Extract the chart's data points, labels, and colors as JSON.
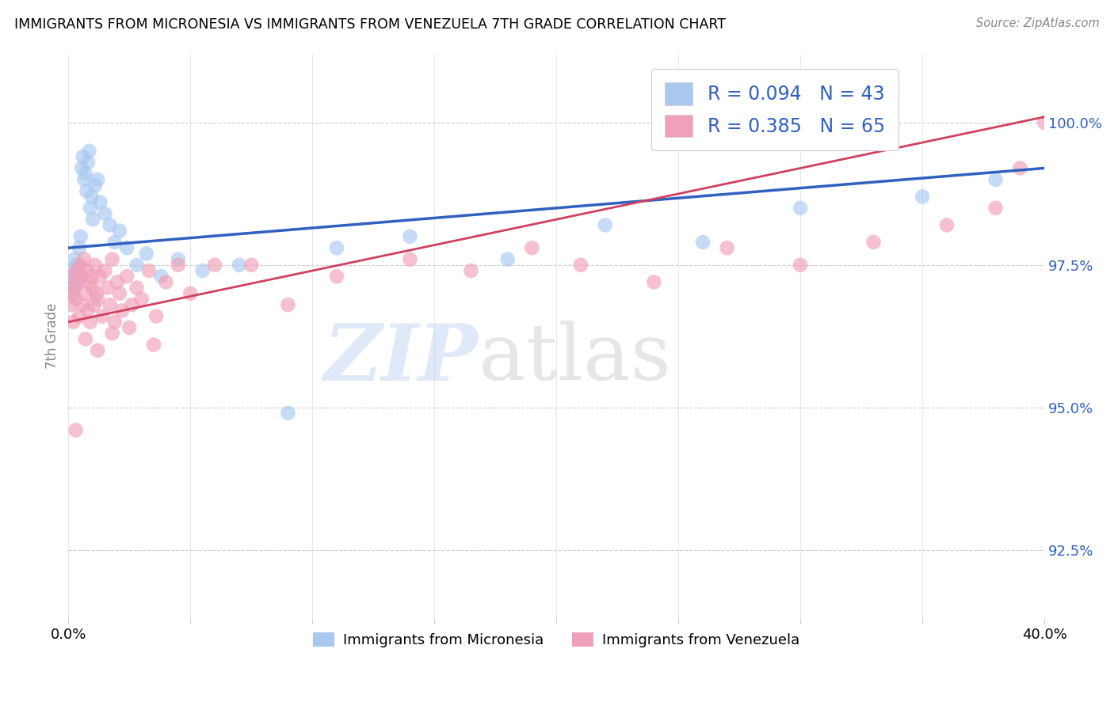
{
  "title": "IMMIGRANTS FROM MICRONESIA VS IMMIGRANTS FROM VENEZUELA 7TH GRADE CORRELATION CHART",
  "source": "Source: ZipAtlas.com",
  "ylabel": "7th Grade",
  "y_ticks": [
    92.5,
    95.0,
    97.5,
    100.0
  ],
  "y_tick_labels": [
    "92.5%",
    "95.0%",
    "97.5%",
    "100.0%"
  ],
  "xlim": [
    0.0,
    40.0
  ],
  "ylim": [
    91.3,
    101.2
  ],
  "R_micro": 0.094,
  "N_micro": 43,
  "R_vene": 0.385,
  "N_vene": 65,
  "color_micro": "#A8C8F0",
  "color_vene": "#F0A0B8",
  "line_color_micro": "#3060C0",
  "line_color_vene": "#D04060",
  "micro_x": [
    0.05,
    0.1,
    0.15,
    0.2,
    0.25,
    0.3,
    0.35,
    0.4,
    0.45,
    0.5,
    0.55,
    0.6,
    0.65,
    0.7,
    0.75,
    0.8,
    0.85,
    0.9,
    0.95,
    1.0,
    1.1,
    1.2,
    1.3,
    1.5,
    1.7,
    1.9,
    2.1,
    2.4,
    2.8,
    3.2,
    3.8,
    4.5,
    5.5,
    7.0,
    9.0,
    11.0,
    14.0,
    18.0,
    22.0,
    26.0,
    30.0,
    35.0,
    38.0
  ],
  "micro_y": [
    97.2,
    97.4,
    97.1,
    97.0,
    97.6,
    97.3,
    97.5,
    97.2,
    97.8,
    98.0,
    99.2,
    99.4,
    99.0,
    99.1,
    98.8,
    99.3,
    99.5,
    98.5,
    98.7,
    98.3,
    98.9,
    99.0,
    98.6,
    98.4,
    98.2,
    97.9,
    98.1,
    97.8,
    97.5,
    97.7,
    97.3,
    97.6,
    97.4,
    97.5,
    94.9,
    97.8,
    98.0,
    97.6,
    98.2,
    97.9,
    98.5,
    98.7,
    99.0
  ],
  "vene_x": [
    0.05,
    0.1,
    0.15,
    0.2,
    0.25,
    0.3,
    0.35,
    0.4,
    0.45,
    0.5,
    0.55,
    0.6,
    0.65,
    0.7,
    0.75,
    0.8,
    0.85,
    0.9,
    0.95,
    1.0,
    1.05,
    1.1,
    1.15,
    1.2,
    1.3,
    1.4,
    1.5,
    1.6,
    1.7,
    1.8,
    1.9,
    2.0,
    2.1,
    2.2,
    2.4,
    2.6,
    2.8,
    3.0,
    3.3,
    3.6,
    4.0,
    4.5,
    5.0,
    6.0,
    7.5,
    9.0,
    11.0,
    14.0,
    16.5,
    19.0,
    21.0,
    24.0,
    27.0,
    30.0,
    33.0,
    36.0,
    38.0,
    39.0,
    40.0,
    0.3,
    0.7,
    1.2,
    1.8,
    2.5,
    3.5
  ],
  "vene_y": [
    97.3,
    96.8,
    97.0,
    96.5,
    97.1,
    96.9,
    97.4,
    97.2,
    96.6,
    97.5,
    97.3,
    96.8,
    97.6,
    97.0,
    97.4,
    96.7,
    97.2,
    96.5,
    97.3,
    97.1,
    96.8,
    97.5,
    97.0,
    96.9,
    97.3,
    96.6,
    97.4,
    97.1,
    96.8,
    97.6,
    96.5,
    97.2,
    97.0,
    96.7,
    97.3,
    96.8,
    97.1,
    96.9,
    97.4,
    96.6,
    97.2,
    97.5,
    97.0,
    97.5,
    97.5,
    96.8,
    97.3,
    97.6,
    97.4,
    97.8,
    97.5,
    97.2,
    97.8,
    97.5,
    97.9,
    98.2,
    98.5,
    99.2,
    100.0,
    94.6,
    96.2,
    96.0,
    96.3,
    96.4,
    96.1
  ],
  "line_micro_x0": 0.0,
  "line_micro_x1": 40.0,
  "line_micro_y0": 97.8,
  "line_micro_y1": 99.2,
  "line_vene_x0": 0.0,
  "line_vene_x1": 40.0,
  "line_vene_y0": 96.5,
  "line_vene_y1": 100.1
}
